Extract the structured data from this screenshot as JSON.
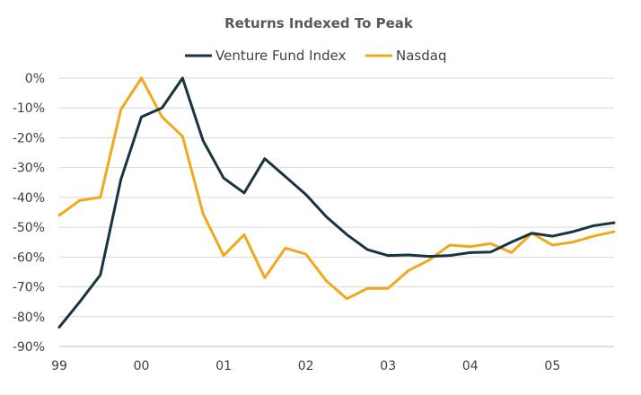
{
  "chart_data": {
    "type": "line",
    "title": "Returns Indexed To Peak",
    "x_tick_labels": [
      "99",
      "00",
      "01",
      "02",
      "03",
      "04",
      "05"
    ],
    "x_tick_values": [
      0,
      4,
      8,
      12,
      16,
      20,
      24
    ],
    "y_tick_labels": [
      "0%",
      "-10%",
      "-20%",
      "-30%",
      "-40%",
      "-50%",
      "-60%",
      "-70%",
      "-80%",
      "-90%"
    ],
    "y_tick_values": [
      0,
      -10,
      -20,
      -30,
      -40,
      -50,
      -60,
      -70,
      -80,
      -90
    ],
    "xlim": [
      0,
      27
    ],
    "ylim": [
      -90,
      0
    ],
    "grid": true,
    "legend_position": "top-center",
    "series": [
      {
        "name": "Venture Fund Index",
        "color": "#173540",
        "x": [
          0,
          1,
          2,
          3,
          4,
          5,
          6,
          7,
          8,
          9,
          10,
          11,
          12,
          13,
          14,
          15,
          16,
          17,
          18,
          19,
          20,
          21,
          22,
          23,
          24,
          25,
          26,
          27
        ],
        "values": [
          -83.5,
          -75,
          -66,
          -34,
          -13,
          -10,
          0,
          -21,
          -33.5,
          -38.5,
          -27,
          -33,
          -39,
          -46.5,
          -52.5,
          -57.5,
          -59.5,
          -59.3,
          -59.8,
          -59.5,
          -58.5,
          -58.3,
          -55,
          -52,
          -53,
          -51.5,
          -49.5,
          -48.5
        ]
      },
      {
        "name": "Nasdaq",
        "color": "#F2A81D",
        "x": [
          0,
          1,
          2,
          3,
          4,
          5,
          6,
          7,
          8,
          9,
          10,
          11,
          12,
          13,
          14,
          15,
          16,
          17,
          18,
          19,
          20,
          21,
          22,
          23,
          24,
          25,
          26,
          27
        ],
        "values": [
          -46,
          -41,
          -40,
          -10.5,
          0,
          -13,
          -19.5,
          -45.5,
          -59.5,
          -52.5,
          -67,
          -57,
          -59,
          -68,
          -74,
          -70.5,
          -70.5,
          -64.5,
          -61,
          -56,
          -56.5,
          -55.5,
          -58.5,
          -52,
          -56,
          -55,
          -53,
          -51.5
        ]
      }
    ]
  }
}
